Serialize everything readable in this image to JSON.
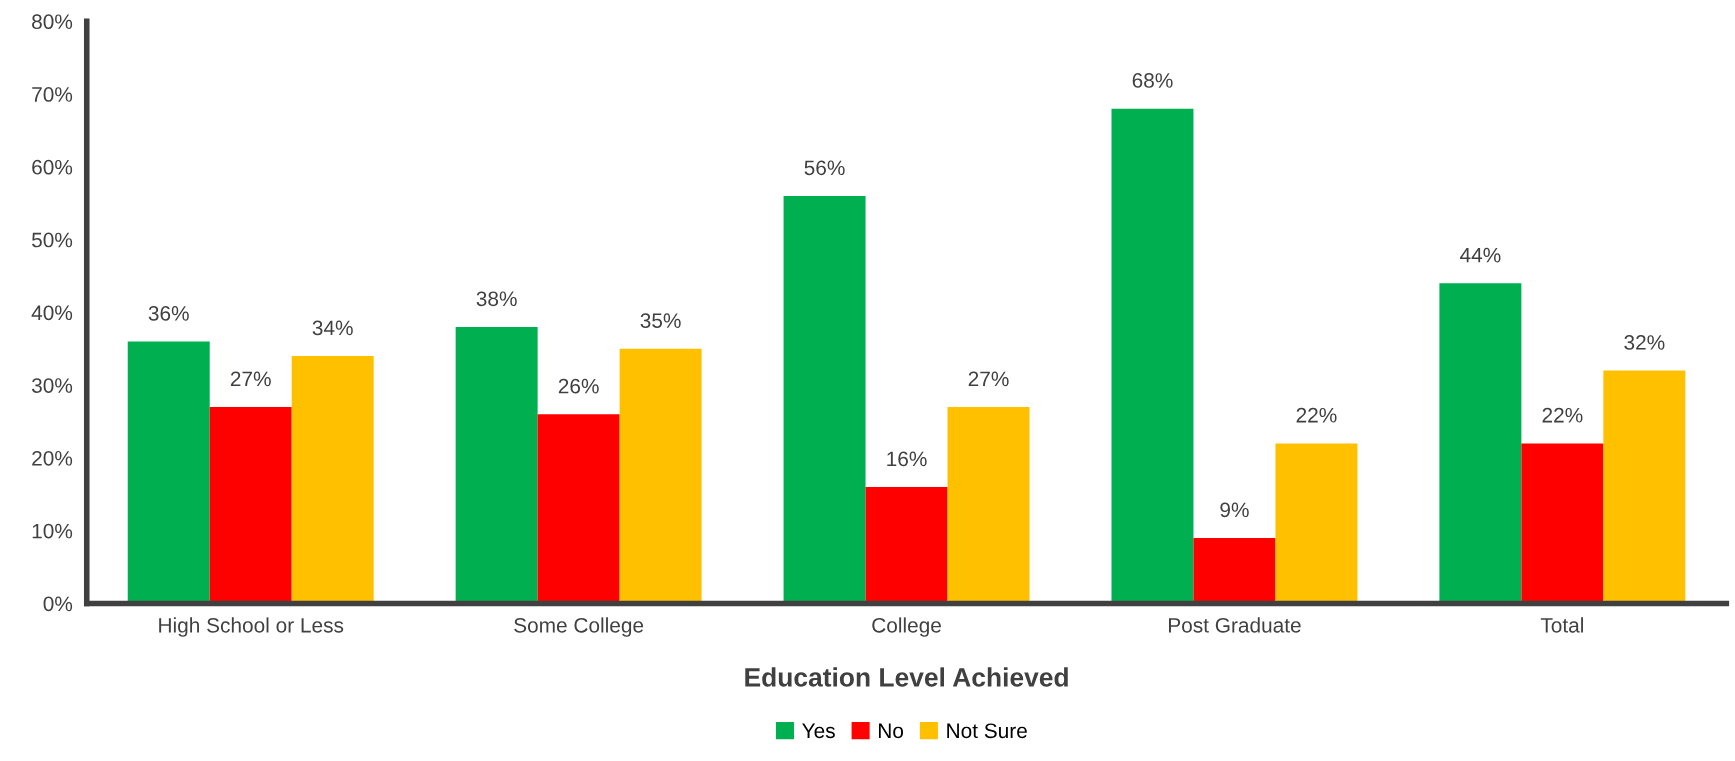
{
  "chart_data": {
    "type": "bar",
    "xlabel": "Education Level Achieved",
    "categories": [
      "High School or Less",
      "Some College",
      "College",
      "Post Graduate",
      "Total"
    ],
    "series": [
      {
        "name": "Yes",
        "color": "#00b050",
        "values": [
          36,
          38,
          56,
          68,
          44
        ],
        "value_labels": [
          "36%",
          "38%",
          "56%",
          "68%",
          "44%"
        ]
      },
      {
        "name": "No",
        "color": "#ff0000",
        "values": [
          27,
          26,
          16,
          9,
          22
        ],
        "value_labels": [
          "27%",
          "26%",
          "16%",
          "9%",
          "22%"
        ]
      },
      {
        "name": "Not Sure",
        "color": "#ffc000",
        "values": [
          34,
          35,
          27,
          22,
          32
        ],
        "value_labels": [
          "34%",
          "35%",
          "27%",
          "22%",
          "32%"
        ]
      }
    ],
    "ylim": [
      0,
      80
    ],
    "yticks": [
      {
        "value": 0,
        "label": "0%"
      },
      {
        "value": 10,
        "label": "10%"
      },
      {
        "value": 20,
        "label": "20%"
      },
      {
        "value": 30,
        "label": "30%"
      },
      {
        "value": 40,
        "label": "40%"
      },
      {
        "value": 50,
        "label": "50%"
      },
      {
        "value": 60,
        "label": "60%"
      },
      {
        "value": 70,
        "label": "70%"
      },
      {
        "value": 80,
        "label": "80%"
      }
    ],
    "grid": false,
    "legend": "bottom"
  }
}
